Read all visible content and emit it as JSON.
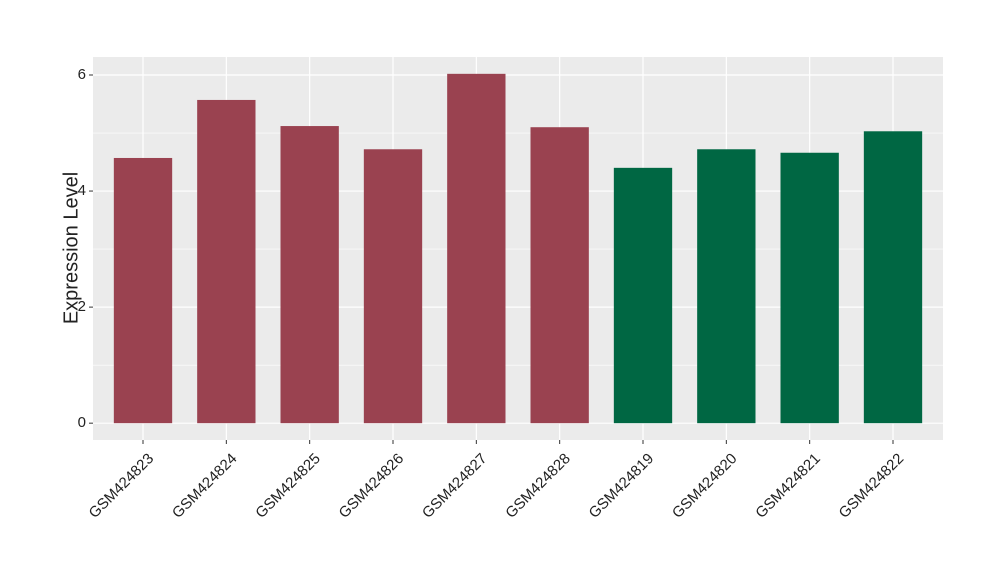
{
  "chart_data": {
    "type": "bar",
    "y_label": "Expression Level",
    "categories": [
      "GSM424823",
      "GSM424824",
      "GSM424825",
      "GSM424826",
      "GSM424827",
      "GSM424828",
      "GSM424819",
      "GSM424820",
      "GSM424821",
      "GSM424822"
    ],
    "values": [
      4.57,
      5.57,
      5.12,
      4.72,
      6.02,
      5.1,
      4.4,
      4.72,
      4.66,
      5.03
    ],
    "colors": [
      "#9a4250",
      "#9a4250",
      "#9a4250",
      "#9a4250",
      "#9a4250",
      "#9a4250",
      "#006743",
      "#006743",
      "#006743",
      "#006743"
    ],
    "ylim": [
      -0.29,
      6.31
    ],
    "yticks": [
      0,
      2,
      4,
      6
    ],
    "grid": true
  }
}
